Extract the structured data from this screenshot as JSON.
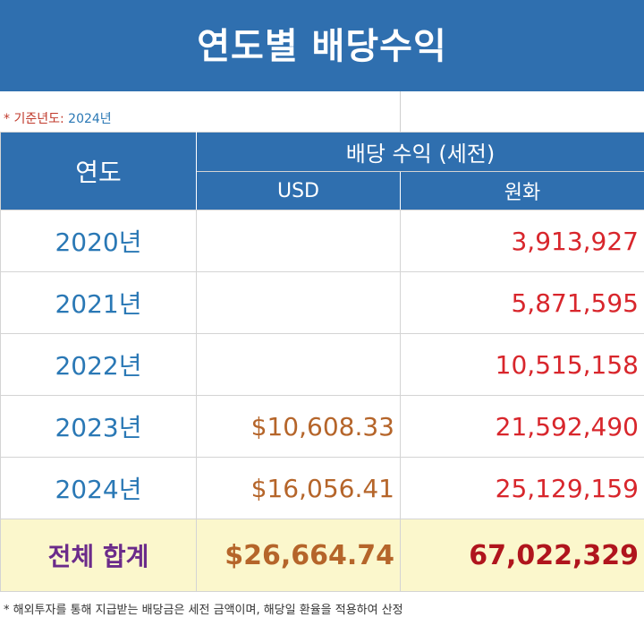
{
  "title": "연도별 배당수익",
  "reference": {
    "star": "*",
    "label": "기준년도:",
    "value": "2024년"
  },
  "header": {
    "year": "연도",
    "dividend": "배당 수익 (세전)",
    "usd": "USD",
    "krw": "원화"
  },
  "rows": [
    {
      "year": "2020년",
      "usd": "",
      "krw": "3,913,927"
    },
    {
      "year": "2021년",
      "usd": "",
      "krw": "5,871,595"
    },
    {
      "year": "2022년",
      "usd": "",
      "krw": "10,515,158"
    },
    {
      "year": "2023년",
      "usd": "$10,608.33",
      "krw": "21,592,490"
    },
    {
      "year": "2024년",
      "usd": "$16,056.41",
      "krw": "25,129,159"
    }
  ],
  "total": {
    "label": "전체 합계",
    "usd": "$26,664.74",
    "krw": "67,022,329"
  },
  "footnote": "* 해외투자를 통해 지급받는 배당금은 세전 금액이며, 해당일 환율을 적용하여 산정",
  "colors": {
    "header_bg": "#2f6faf",
    "year_text": "#2a78b5",
    "usd_text": "#b5652a",
    "krw_text": "#d8262c",
    "total_bg": "#fbf7cc",
    "total_label": "#6b2b8a"
  }
}
